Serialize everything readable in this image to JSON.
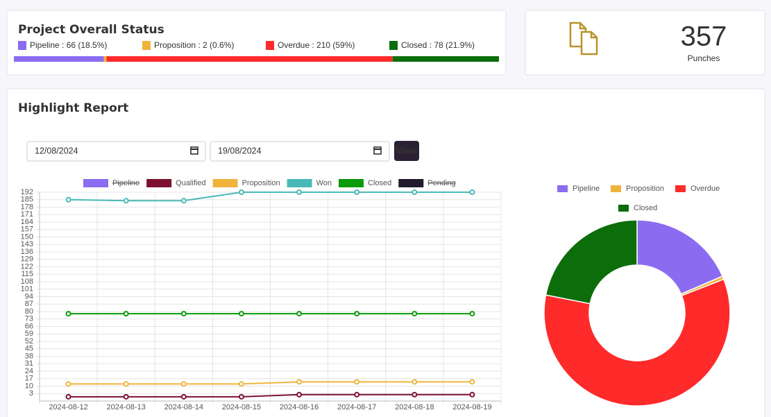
{
  "status": {
    "title": "Project Overall Status",
    "items": [
      {
        "label": "Pipeline : 66 (18.5%)",
        "value": 66,
        "color": "#8b6cf0"
      },
      {
        "label": "Proposition : 2 (0.6%)",
        "value": 2,
        "color": "#f0b43c"
      },
      {
        "label": "Overdue : 210 (59%)",
        "value": 210,
        "color": "#ff2a2a"
      },
      {
        "label": "Closed : 78 (21.9%)",
        "value": 78,
        "color": "#0b6e0b"
      }
    ]
  },
  "punches": {
    "value": 357,
    "label": "Punches"
  },
  "report": {
    "title": "Highlight Report",
    "from": "12/08/2024",
    "to": "19/08/2024",
    "button": "View"
  },
  "chart_data": [
    {
      "type": "line",
      "categories": [
        "2024-08-12",
        "2024-08-13",
        "2024-08-14",
        "2024-08-15",
        "2024-08-16",
        "2024-08-17",
        "2024-08-18",
        "2024-08-19"
      ],
      "ylim": [
        -4,
        192
      ],
      "yticks": [
        3,
        10,
        17,
        24,
        31,
        38,
        45,
        52,
        59,
        66,
        73,
        80,
        87,
        94,
        101,
        108,
        115,
        122,
        129,
        136,
        143,
        150,
        157,
        164,
        171,
        178,
        185,
        192
      ],
      "grid": true,
      "series": [
        {
          "name": "Pipeline",
          "color": "#8b6cf0",
          "hidden": true,
          "values": [
            null,
            null,
            null,
            null,
            null,
            null,
            null,
            null
          ]
        },
        {
          "name": "Qualified",
          "color": "#7d1030",
          "values": [
            0,
            0,
            0,
            0,
            2,
            2,
            2,
            2
          ]
        },
        {
          "name": "Proposition",
          "color": "#f0b43c",
          "values": [
            12,
            12,
            12,
            12,
            14,
            14,
            14,
            14
          ]
        },
        {
          "name": "Won",
          "color": "#4bb8b8",
          "values": [
            185,
            184,
            184,
            192,
            192,
            192,
            192,
            192
          ]
        },
        {
          "name": "Closed",
          "color": "#0a9a0a",
          "values": [
            78,
            78,
            78,
            78,
            78,
            78,
            78,
            78
          ]
        },
        {
          "name": "Pending",
          "color": "#221a2e",
          "hidden": true,
          "values": [
            null,
            null,
            null,
            null,
            null,
            null,
            null,
            null
          ]
        }
      ]
    },
    {
      "type": "doughnut",
      "categories": [
        "Pipeline",
        "Proposition",
        "Overdue",
        "Closed"
      ],
      "values": [
        66,
        2,
        210,
        78
      ],
      "colors": [
        "#8b6cf0",
        "#f0b43c",
        "#ff2a2a",
        "#0b6e0b"
      ],
      "legend": "top"
    }
  ]
}
